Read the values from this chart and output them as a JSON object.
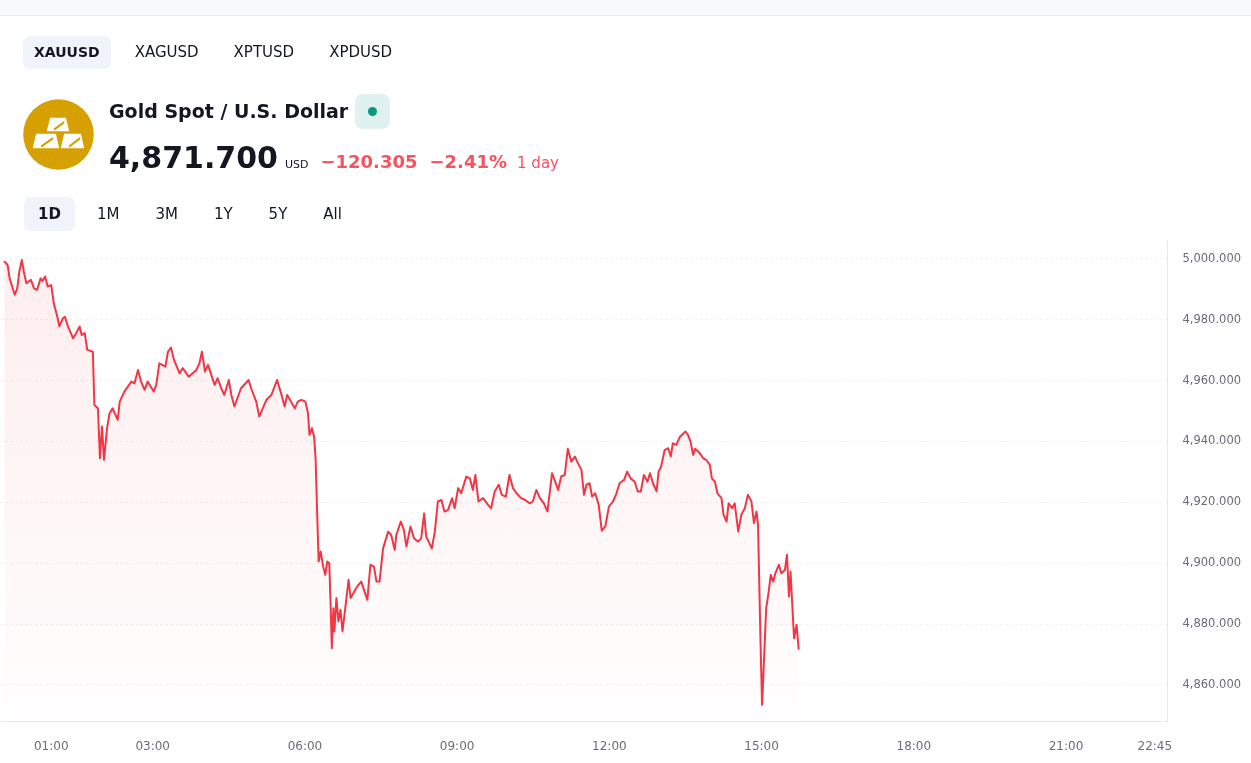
{
  "chart_data": {
    "type": "area",
    "title": "Gold Spot / U.S. Dollar",
    "annotations": [
      "XAUUSD",
      "XAGUSD",
      "XPTUSD",
      "XPDUSD",
      "4,871.700",
      "USD",
      "−120.305",
      "−2.41%",
      "1 day",
      "1D",
      "1M",
      "3M",
      "1Y",
      "5Y",
      "All"
    ],
    "xlim": [
      0,
      23
    ],
    "xticks": [
      {
        "value": 1,
        "label": "01:00"
      },
      {
        "value": 3,
        "label": "03:00"
      },
      {
        "value": 6,
        "label": "06:00"
      },
      {
        "value": 9,
        "label": "09:00"
      },
      {
        "value": 12,
        "label": "12:00"
      },
      {
        "value": 15,
        "label": "15:00"
      },
      {
        "value": 18,
        "label": "18:00"
      },
      {
        "value": 21,
        "label": "21:00"
      },
      {
        "value": 22.75,
        "label": "22:45"
      }
    ],
    "ylim": [
      4848,
      5006
    ],
    "yticks": [
      {
        "value": 4860,
        "label": "4,860.000"
      },
      {
        "value": 4880,
        "label": "4,880.000"
      },
      {
        "value": 4900,
        "label": "4,900.000"
      },
      {
        "value": 4920,
        "label": "4,920.000"
      },
      {
        "value": 4940,
        "label": "4,940.000"
      },
      {
        "value": 4960,
        "label": "4,960.000"
      },
      {
        "value": 4980,
        "label": "4,980.000"
      },
      {
        "value": 5000,
        "label": "5,000.000"
      }
    ],
    "grid": "y",
    "x": [
      0.09,
      0.15,
      0.19,
      0.29,
      0.34,
      0.38,
      0.43,
      0.47,
      0.52,
      0.61,
      0.67,
      0.73,
      0.8,
      0.84,
      0.89,
      0.94,
      1.01,
      1.06,
      1.13,
      1.17,
      1.24,
      1.28,
      1.34,
      1.44,
      1.5,
      1.57,
      1.61,
      1.67,
      1.72,
      1.83,
      1.86,
      1.93,
      1.97,
      2.01,
      2.05,
      2.11,
      2.16,
      2.22,
      2.32,
      2.36,
      2.45,
      2.59,
      2.65,
      2.72,
      2.78,
      2.85,
      2.91,
      3.03,
      3.08,
      3.14,
      3.26,
      3.31,
      3.37,
      3.43,
      3.54,
      3.6,
      3.72,
      3.87,
      3.93,
      3.98,
      4.04,
      4.1,
      4.23,
      4.29,
      4.36,
      4.42,
      4.51,
      4.56,
      4.62,
      4.75,
      4.9,
      4.95,
      5.05,
      5.11,
      5.25,
      5.35,
      5.41,
      5.46,
      5.53,
      5.61,
      5.66,
      5.81,
      5.87,
      5.94,
      6.02,
      6.07,
      6.1,
      6.15,
      6.19,
      6.22,
      6.25,
      6.28,
      6.32,
      6.37,
      6.41,
      6.45,
      6.49,
      6.52,
      6.54,
      6.57,
      6.59,
      6.63,
      6.67,
      6.71,
      6.75,
      6.82,
      6.87,
      6.91,
      7.04,
      7.12,
      7.24,
      7.3,
      7.37,
      7.42,
      7.48,
      7.55,
      7.65,
      7.71,
      7.78,
      7.81,
      7.9,
      7.96,
      8.01,
      8.09,
      8.16,
      8.24,
      8.3,
      8.36,
      8.4,
      8.51,
      8.57,
      8.63,
      8.7,
      8.76,
      8.83,
      8.91,
      8.96,
      9.03,
      9.09,
      9.19,
      9.26,
      9.32,
      9.37,
      9.43,
      9.52,
      9.62,
      9.68,
      9.75,
      9.83,
      9.89,
      9.97,
      10.04,
      10.11,
      10.18,
      10.27,
      10.35,
      10.44,
      10.5,
      10.57,
      10.64,
      10.72,
      10.79,
      10.88,
      10.93,
      11,
      11.06,
      11.13,
      11.19,
      11.26,
      11.33,
      11.39,
      11.46,
      11.51,
      11.56,
      11.62,
      11.67,
      11.73,
      11.8,
      11.86,
      11.93,
      12,
      12.08,
      12.15,
      12.21,
      12.3,
      12.36,
      12.43,
      12.51,
      12.57,
      12.63,
      12.69,
      12.76,
      12.81,
      12.87,
      12.94,
      12.98,
      13.03,
      13.1,
      13.17,
      13.22,
      13.26,
      13.33,
      13.4,
      13.51,
      13.56,
      13.61,
      13.66,
      13.7,
      13.79,
      13.86,
      13.92,
      13.99,
      14.03,
      14.09,
      14.14,
      14.22,
      14.26,
      14.32,
      14.36,
      14.43,
      14.48,
      14.55,
      14.61,
      14.68,
      14.74,
      14.81,
      14.86,
      14.91,
      14.94,
      14.99,
      15.02,
      15.07,
      15.1,
      15.15,
      15.19,
      15.24,
      15.28,
      15.35,
      15.4,
      15.47,
      15.51,
      15.55,
      15.58,
      15.65,
      15.7,
      15.74
    ],
    "series": [
      {
        "color": "#f23645",
        "values": [
          4998.9,
          4997.8,
          4993.4,
          4988.0,
          4990.1,
          4995.6,
          4999.4,
          4995.6,
          4991.8,
          4992.9,
          4990.1,
          4989.6,
          4993.4,
          4992.5,
          4994.0,
          4990.7,
          4991.2,
          4985.2,
          4980.8,
          4977.6,
          4980.3,
          4980.8,
          4977.6,
          4973.7,
          4975.4,
          4977.6,
          4974.8,
          4975.4,
          4969.9,
          4969.3,
          4951.8,
          4950.7,
          4934.3,
          4944.7,
          4933.8,
          4944.2,
          4949.1,
          4950.7,
          4946.9,
          4952.9,
          4956.2,
          4959.5,
          4958.9,
          4963.3,
          4959.5,
          4956.8,
          4959.5,
          4956.2,
          4958.4,
          4965.5,
          4964.4,
          4969.3,
          4970.7,
          4966.6,
          4962.2,
          4963.9,
          4961.1,
          4963.3,
          4965.5,
          4969.3,
          4962.8,
          4965.0,
          4958.4,
          4960.6,
          4957.3,
          4955.1,
          4960.0,
          4955.1,
          4951.3,
          4957.3,
          4960.0,
          4957.3,
          4952.9,
          4948.0,
          4953.5,
          4955.1,
          4957.8,
          4960.0,
          4956.2,
          4951.3,
          4955.1,
          4950.7,
          4952.9,
          4953.5,
          4952.9,
          4949.1,
          4942.0,
          4944.2,
          4941.4,
          4934.3,
          4916.8,
          4900.4,
          4903.7,
          4898.7,
          4896.0,
          4900.4,
          4899.8,
          4883.9,
          4871.9,
          4885.0,
          4877.4,
          4888.4,
          4880.7,
          4884.5,
          4877.4,
          4887.2,
          4894.4,
          4888.4,
          4892.2,
          4893.8,
          4887.8,
          4899.3,
          4898.7,
          4893.8,
          4893.8,
          4904.7,
          4910.2,
          4909.1,
          4904.2,
          4909.1,
          4913.5,
          4910.8,
          4905.3,
          4911.9,
          4908.0,
          4906.9,
          4908.0,
          4916.2,
          4908.6,
          4904.7,
          4910.2,
          4920.1,
          4920.6,
          4916.8,
          4917.3,
          4921.2,
          4917.9,
          4924.5,
          4922.8,
          4928.3,
          4927.7,
          4923.9,
          4928.8,
          4920.1,
          4921.2,
          4919.0,
          4917.9,
          4923.4,
          4925.6,
          4922.3,
          4921.7,
          4928.8,
          4924.5,
          4922.8,
          4921.2,
          4920.6,
          4919.5,
          4920.1,
          4923.9,
          4921.2,
          4919.5,
          4916.8,
          4929.4,
          4927.2,
          4923.9,
          4928.3,
          4928.8,
          4937.4,
          4933.2,
          4934.9,
          4932.7,
          4930.5,
          4922.3,
          4925.6,
          4926.1,
          4921.7,
          4922.8,
          4919.0,
          4910.5,
          4911.9,
          4918.4,
          4920.1,
          4922.8,
          4926.1,
          4927.2,
          4929.9,
          4927.7,
          4926.6,
          4923.4,
          4923.4,
          4928.8,
          4926.6,
          4929.4,
          4926.1,
          4923.4,
          4929.9,
          4931.6,
          4937.0,
          4937.6,
          4934.9,
          4939.2,
          4938.7,
          4941.4,
          4943.1,
          4942.0,
          4939.8,
          4935.4,
          4937.4,
          4936.0,
          4934.3,
          4933.8,
          4932.1,
          4927.7,
          4926.6,
          4922.8,
          4921.2,
          4915.7,
          4913.5,
          4919.5,
          4917.9,
          4919.5,
          4910.2,
          4915.7,
          4917.9,
          4922.3,
          4920.1,
          4913.0,
          4916.8,
          4912.4,
          4873.0,
          4853.3,
          4873.0,
          4885.0,
          4890.5,
          4896.0,
          4893.8,
          4896.5,
          4899.3,
          4896.5,
          4897.6,
          4902.6,
          4888.9,
          4897.1,
          4875.2,
          4879.6,
          4871.7
        ]
      }
    ]
  }
}
